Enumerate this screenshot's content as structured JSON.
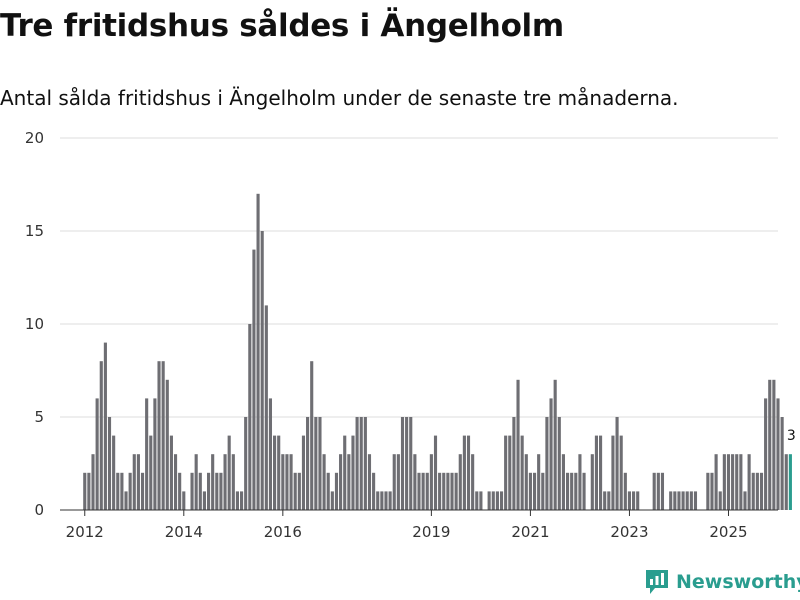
{
  "header": {
    "title": "Tre fritidshus såldes i Ängelholm",
    "subtitle": "Antal sålda fritidshus i Ängelholm under de senaste tre månaderna."
  },
  "brand": {
    "name": "Newsworthy",
    "icon": "newsworthy-logo-icon",
    "color": "#2a9d8f"
  },
  "chart_data": {
    "type": "bar",
    "title": "Tre fritidshus såldes i Ängelholm",
    "subtitle": "Antal sålda fritidshus i Ängelholm under de senaste tre månaderna.",
    "xlabel": "",
    "ylabel": "",
    "ylim": [
      0,
      20
    ],
    "yticks": [
      0,
      5,
      10,
      15,
      20
    ],
    "grid": true,
    "x_start": "2012-01",
    "xlim_months": [
      -6,
      168
    ],
    "xticks": [
      {
        "label": "2012",
        "month_index": 0
      },
      {
        "label": "2014",
        "month_index": 24
      },
      {
        "label": "2016",
        "month_index": 48
      },
      {
        "label": "2019",
        "month_index": 84
      },
      {
        "label": "2021",
        "month_index": 108
      },
      {
        "label": "2023",
        "month_index": 132
      },
      {
        "label": "2025",
        "month_index": 156
      }
    ],
    "values": [
      2,
      2,
      3,
      6,
      8,
      9,
      5,
      4,
      2,
      2,
      1,
      2,
      3,
      3,
      2,
      6,
      4,
      6,
      8,
      8,
      7,
      4,
      3,
      2,
      1,
      0,
      2,
      3,
      2,
      1,
      2,
      3,
      2,
      2,
      3,
      4,
      3,
      1,
      1,
      5,
      10,
      14,
      17,
      15,
      11,
      6,
      4,
      4,
      3,
      3,
      3,
      2,
      2,
      4,
      5,
      8,
      5,
      5,
      3,
      2,
      1,
      2,
      3,
      4,
      3,
      4,
      5,
      5,
      5,
      3,
      2,
      1,
      1,
      1,
      1,
      3,
      3,
      5,
      5,
      5,
      3,
      2,
      2,
      2,
      3,
      4,
      2,
      2,
      2,
      2,
      2,
      3,
      4,
      4,
      3,
      1,
      1,
      0,
      1,
      1,
      1,
      1,
      4,
      4,
      5,
      7,
      4,
      3,
      2,
      2,
      3,
      2,
      5,
      6,
      7,
      5,
      3,
      2,
      2,
      2,
      3,
      2,
      0,
      3,
      4,
      4,
      1,
      1,
      4,
      5,
      4,
      2,
      1,
      1,
      1,
      0,
      0,
      0,
      2,
      2,
      2,
      0,
      1,
      1,
      1,
      1,
      1,
      1,
      1,
      0,
      0,
      2,
      2,
      3,
      1,
      3,
      3,
      3,
      3,
      3,
      1,
      3,
      2,
      2,
      2,
      6,
      7,
      7,
      6,
      5,
      3,
      3
    ],
    "highlight": {
      "count": 1,
      "color": "#2a9d8f",
      "label": "3"
    },
    "bar_color": "#6e6e73",
    "grid_color": "#dddddd"
  }
}
